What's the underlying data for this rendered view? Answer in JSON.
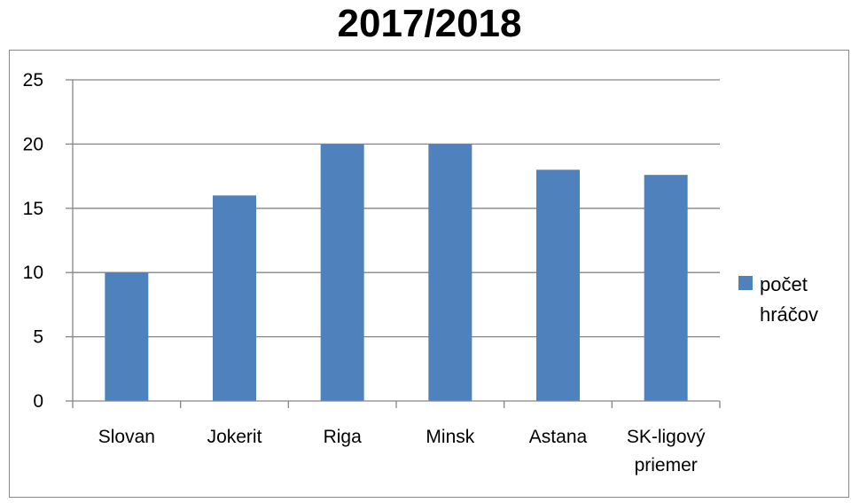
{
  "chart_data": {
    "type": "bar",
    "title": "2017/2018",
    "categories": [
      [
        "Slovan"
      ],
      [
        "Jokerit"
      ],
      [
        "Riga"
      ],
      [
        "Minsk"
      ],
      [
        "Astana"
      ],
      [
        "SK-ligový",
        "priemer"
      ]
    ],
    "series": [
      {
        "name": "počet hráčov",
        "name_lines": [
          "počet",
          "hráčov"
        ],
        "values": [
          10,
          16,
          20,
          20,
          18,
          17.6
        ],
        "color": "#4f81bd"
      }
    ],
    "ylim": [
      0,
      25
    ],
    "yticks": [
      0,
      5,
      10,
      15,
      20,
      25
    ],
    "grid": true,
    "legend": "right",
    "colors": {
      "gridline": "#868686",
      "axis": "#868686",
      "frame": "#888888"
    }
  }
}
